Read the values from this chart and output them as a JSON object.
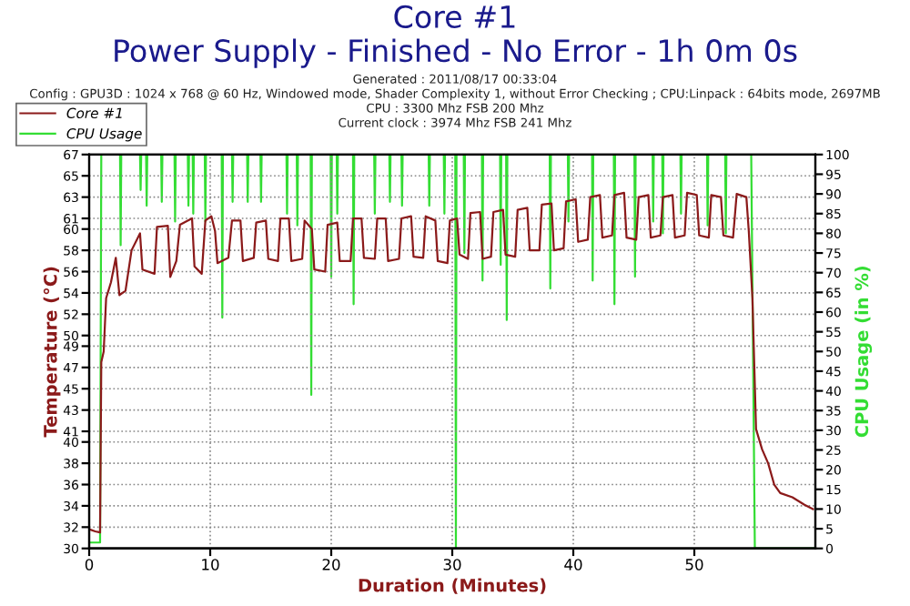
{
  "chart_data": {
    "type": "line",
    "title": "Core #1",
    "subtitle": "Power Supply - Finished - No Error - 1h 0m 0s",
    "annotations": [
      "Generated : 2011/08/17 00:33:04",
      "Config : GPU3D : 1024 x 768 @ 60 Hz, Windowed mode, Shader Complexity 1, without Error Checking ; CPU:Linpack : 64bits mode, 2697MB",
      "CPU : 3300 Mhz FSB 200 Mhz",
      "Current clock : 3974 Mhz FSB 241 Mhz"
    ],
    "xlabel": "Duration (Minutes)",
    "ylabel": "Temperature (°C)",
    "y2label": "CPU Usage (in %)",
    "xlim": [
      0,
      60
    ],
    "xticks": [
      0,
      10,
      20,
      30,
      40,
      50
    ],
    "ylim": [
      30,
      67
    ],
    "yticks": [
      30,
      32,
      34,
      36,
      38,
      40,
      41,
      43,
      45,
      47,
      49,
      50,
      52,
      54,
      56,
      58,
      60,
      61,
      63,
      65,
      67
    ],
    "y2lim": [
      0,
      100
    ],
    "y2ticks": [
      0,
      5,
      10,
      15,
      20,
      25,
      30,
      35,
      40,
      45,
      50,
      55,
      60,
      65,
      70,
      75,
      80,
      85,
      90,
      95,
      100
    ],
    "grid": true,
    "legend": "top left",
    "marker": "none",
    "line_style": "solid",
    "series": [
      {
        "name": "Core #1",
        "color": "#8b1a1a",
        "x": [
          0,
          0.5,
          0.9,
          1.0,
          1.2,
          1.4,
          1.8,
          2.2,
          2.5,
          3.0,
          3.5,
          4.2,
          4.4,
          5.4,
          5.6,
          6.5,
          6.7,
          7.2,
          7.5,
          8.5,
          8.7,
          9.3,
          9.6,
          10.1,
          10.4,
          10.6,
          11.5,
          11.8,
          12.5,
          12.7,
          13.6,
          13.8,
          14.6,
          14.8,
          15.6,
          15.8,
          16.5,
          16.7,
          17.6,
          17.8,
          18.4,
          18.6,
          19.5,
          19.7,
          20.5,
          20.7,
          21.6,
          21.8,
          22.5,
          22.7,
          23.6,
          23.8,
          24.5,
          24.7,
          25.6,
          25.8,
          26.6,
          26.8,
          27.6,
          27.8,
          28.6,
          28.8,
          29.6,
          29.8,
          30.4,
          30.6,
          31.3,
          31.5,
          32.3,
          32.5,
          33.2,
          33.4,
          34.2,
          34.4,
          35.2,
          35.4,
          36.2,
          36.4,
          37.2,
          37.4,
          38.2,
          38.4,
          39.2,
          39.4,
          40.2,
          40.4,
          41.2,
          41.4,
          42.2,
          42.4,
          43.2,
          43.4,
          44.2,
          44.4,
          45.2,
          45.4,
          46.2,
          46.4,
          47.2,
          47.4,
          48.2,
          48.4,
          49.2,
          49.4,
          50.2,
          50.4,
          51.2,
          51.4,
          52.2,
          52.4,
          53.2,
          53.5,
          54.3,
          54.5,
          54.8,
          55.1,
          55.6,
          56.1,
          56.6,
          57.1,
          58.1,
          59.1,
          59.8
        ],
        "values": [
          31.8,
          31.6,
          31.5,
          47.5,
          48.5,
          53.5,
          55,
          57.3,
          53.8,
          54.2,
          58,
          59.6,
          56.2,
          55.8,
          60.2,
          60.3,
          55.5,
          57,
          60.4,
          61,
          56.5,
          55.8,
          60.8,
          61.2,
          59.8,
          56.8,
          57.3,
          60.8,
          60.8,
          57,
          57.3,
          60.6,
          60.8,
          57.2,
          57,
          61,
          61,
          57,
          57.2,
          60.8,
          60,
          56.2,
          56,
          60.4,
          60.6,
          57,
          57,
          61,
          61,
          57.3,
          57.2,
          61,
          61,
          57,
          57.2,
          61,
          61.2,
          57.4,
          57.3,
          61.2,
          60.8,
          57,
          56.8,
          60.8,
          61,
          57.6,
          57.2,
          61.5,
          61.6,
          57.2,
          57.4,
          61.6,
          61.8,
          57.6,
          57.4,
          61.8,
          62,
          58,
          58,
          62.3,
          62.4,
          58,
          58.2,
          62.6,
          62.8,
          58.8,
          59,
          63,
          63.2,
          59.2,
          59.4,
          63.2,
          63.4,
          59.2,
          59,
          63,
          63.2,
          59.2,
          59.4,
          63,
          63.2,
          59.2,
          59.4,
          63.4,
          63.2,
          59.4,
          59.2,
          63.2,
          63,
          59.4,
          59.2,
          63.3,
          63,
          59.8,
          53.5,
          41.2,
          39.3,
          38,
          36,
          35.2,
          34.8,
          34.1,
          33.7
        ]
      },
      {
        "name": "CPU Usage",
        "color": "#33dd33",
        "axis": "y2",
        "x": [
          0,
          0.9,
          1.0,
          2.55,
          2.6,
          2.65,
          4.2,
          4.25,
          4.3,
          4.7,
          4.75,
          4.8,
          5.95,
          6.0,
          6.05,
          7.05,
          7.1,
          7.15,
          8.15,
          8.2,
          8.25,
          8.55,
          8.6,
          8.65,
          9.55,
          9.6,
          9.65,
          10.95,
          11.0,
          11.05,
          11.8,
          11.85,
          11.9,
          13.05,
          13.1,
          13.15,
          14.15,
          14.2,
          14.25,
          16.3,
          16.35,
          16.4,
          17.15,
          17.2,
          17.25,
          18.3,
          18.35,
          18.4,
          19.95,
          20.0,
          20.05,
          20.45,
          20.5,
          20.55,
          21.8,
          21.85,
          21.9,
          23.55,
          23.6,
          23.65,
          24.8,
          24.85,
          24.9,
          25.8,
          25.85,
          25.9,
          28.05,
          28.1,
          28.15,
          29.3,
          29.35,
          29.4,
          30.25,
          30.3,
          30.35,
          30.95,
          31.0,
          31.05,
          32.45,
          32.5,
          32.55,
          33.95,
          34.0,
          34.05,
          34.45,
          34.5,
          34.55,
          38.05,
          38.1,
          38.15,
          39.55,
          39.6,
          39.65,
          41.55,
          41.6,
          41.65,
          43.35,
          43.4,
          43.45,
          45.05,
          45.1,
          45.15,
          46.55,
          46.6,
          46.65,
          47.35,
          47.4,
          47.45,
          48.85,
          48.9,
          48.95,
          51.05,
          51.1,
          51.15,
          52.55,
          52.6,
          52.65,
          54.7,
          55.0,
          60
        ],
        "values": [
          1.5,
          1.5,
          100,
          100,
          77,
          100,
          100,
          91,
          100,
          100,
          87,
          100,
          100,
          88,
          100,
          100,
          83,
          100,
          100,
          87,
          100,
          100,
          85,
          100,
          100,
          83,
          100,
          100,
          58.6,
          100,
          100,
          88,
          100,
          100,
          88,
          100,
          100,
          88,
          100,
          100,
          85,
          100,
          100,
          82,
          100,
          100,
          39,
          100,
          100,
          69,
          100,
          100,
          85,
          100,
          100,
          62,
          100,
          100,
          85,
          100,
          100,
          88,
          100,
          100,
          87,
          100,
          100,
          87,
          100,
          100,
          85,
          100,
          100,
          0,
          100,
          100,
          75,
          100,
          100,
          68,
          100,
          100,
          72,
          100,
          100,
          58,
          100,
          100,
          66,
          100,
          100,
          83,
          100,
          100,
          68,
          100,
          100,
          62,
          100,
          100,
          69,
          100,
          100,
          83,
          100,
          100,
          80,
          100,
          100,
          85,
          100,
          100,
          82,
          100,
          100,
          80,
          100,
          100,
          0,
          0
        ]
      }
    ]
  }
}
